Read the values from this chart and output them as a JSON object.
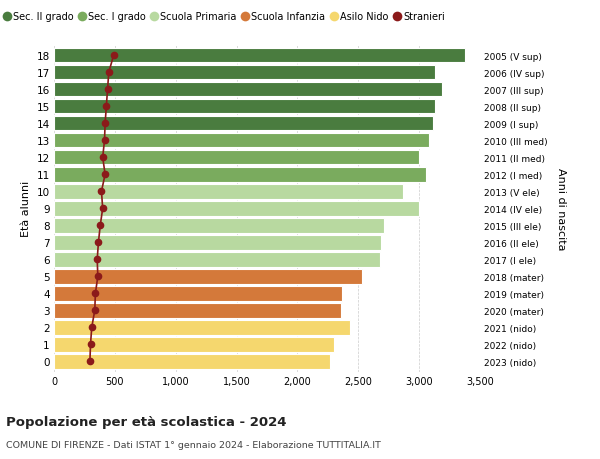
{
  "ages": [
    18,
    17,
    16,
    15,
    14,
    13,
    12,
    11,
    10,
    9,
    8,
    7,
    6,
    5,
    4,
    3,
    2,
    1,
    0
  ],
  "right_labels": [
    "2005 (V sup)",
    "2006 (IV sup)",
    "2007 (III sup)",
    "2008 (II sup)",
    "2009 (I sup)",
    "2010 (III med)",
    "2011 (II med)",
    "2012 (I med)",
    "2013 (V ele)",
    "2014 (IV ele)",
    "2015 (III ele)",
    "2016 (II ele)",
    "2017 (I ele)",
    "2018 (mater)",
    "2019 (mater)",
    "2020 (mater)",
    "2021 (nido)",
    "2022 (nido)",
    "2023 (nido)"
  ],
  "bar_values": [
    3380,
    3130,
    3190,
    3130,
    3110,
    3080,
    3000,
    3060,
    2870,
    3000,
    2710,
    2690,
    2680,
    2530,
    2370,
    2360,
    2430,
    2300,
    2270
  ],
  "bar_colors": [
    "#4a7c3f",
    "#4a7c3f",
    "#4a7c3f",
    "#4a7c3f",
    "#4a7c3f",
    "#7aab5e",
    "#7aab5e",
    "#7aab5e",
    "#b8d9a0",
    "#b8d9a0",
    "#b8d9a0",
    "#b8d9a0",
    "#b8d9a0",
    "#d4793a",
    "#d4793a",
    "#d4793a",
    "#f5d76e",
    "#f5d76e",
    "#f5d76e"
  ],
  "stranieri_values": [
    490,
    450,
    440,
    430,
    420,
    415,
    400,
    420,
    390,
    400,
    380,
    365,
    355,
    360,
    340,
    335,
    310,
    300,
    295
  ],
  "stranieri_color": "#8b1a1a",
  "xlim": [
    0,
    3500
  ],
  "xticks": [
    0,
    500,
    1000,
    1500,
    2000,
    2500,
    3000,
    3500
  ],
  "xtick_labels": [
    "0",
    "500",
    "1,000",
    "1,500",
    "2,000",
    "2,500",
    "3,000",
    "3,500"
  ],
  "ylabel_left": "Età alunni",
  "ylabel_right": "Anni di nascita",
  "title": "Popolazione per età scolastica - 2024",
  "subtitle": "COMUNE DI FIRENZE - Dati ISTAT 1° gennaio 2024 - Elaborazione TUTTITALIA.IT",
  "legend_labels": [
    "Sec. II grado",
    "Sec. I grado",
    "Scuola Primaria",
    "Scuola Infanzia",
    "Asilo Nido",
    "Stranieri"
  ],
  "legend_colors": [
    "#4a7c3f",
    "#7aab5e",
    "#b8d9a0",
    "#d4793a",
    "#f5d76e",
    "#8b1a1a"
  ],
  "bg_color": "#ffffff",
  "bar_height": 0.85
}
